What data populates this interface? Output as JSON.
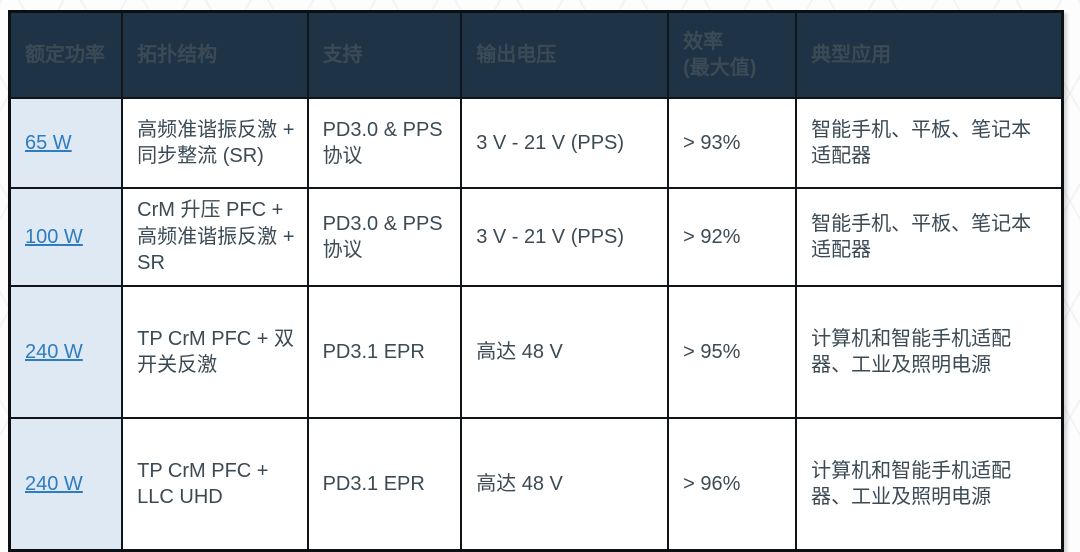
{
  "table": {
    "columns": {
      "power": "额定功率",
      "topology": "拓扑结构",
      "support": "支持",
      "output_voltage": "输出电压",
      "efficiency": "效率\n(最大值)",
      "applications": "典型应用"
    },
    "rows": [
      {
        "power": "65 W",
        "topology": "高频准谐振反激 + 同步整流 (SR)",
        "support": "PD3.0 & PPS 协议",
        "output_voltage": "3 V - 21 V (PPS)",
        "efficiency": "> 93%",
        "applications": "智能手机、平板、笔记本适配器"
      },
      {
        "power": "100 W",
        "topology": "CrM 升压 PFC + 高频准谐振反激 + SR",
        "support": "PD3.0 & PPS 协议",
        "output_voltage": "3 V - 21 V (PPS)",
        "efficiency": "> 92%",
        "applications": "智能手机、平板、笔记本适配器"
      },
      {
        "power": "240 W",
        "topology": "TP CrM PFC + 双开关反激",
        "support": "PD3.1 EPR",
        "output_voltage": "高达 48 V",
        "efficiency": "> 95%",
        "applications": "计算机和智能手机适配器、工业及照明电源"
      },
      {
        "power": "240 W",
        "topology": "TP CrM PFC + LLC UHD",
        "support": "PD3.1 EPR",
        "output_voltage": "高达 48 V",
        "efficiency": "> 96%",
        "applications": "计算机和智能手机适配器、工业及照明电源"
      }
    ],
    "colors": {
      "header_bg": "#1f3347",
      "link_blue": "#2e7cc1",
      "power_cell_bg": "#dfe9f3",
      "border": "#111418",
      "body_text": "#3b4a55"
    }
  }
}
